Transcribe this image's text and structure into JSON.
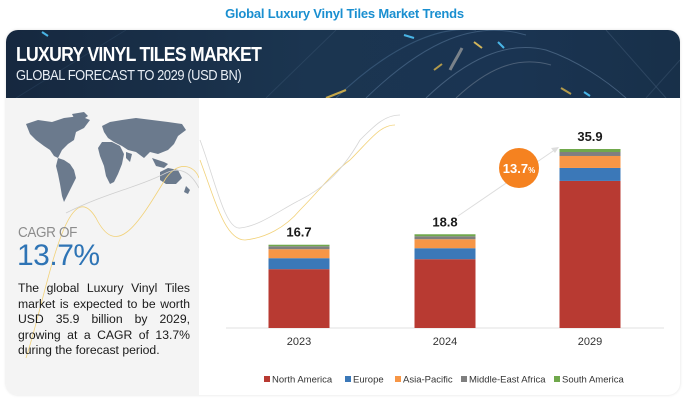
{
  "page_title": "Global Luxury Vinyl Tiles Market Trends",
  "banner": {
    "title": "LUXURY VINYL TILES MARKET",
    "subtitle": "GLOBAL FORECAST TO 2029 (USD BN)"
  },
  "left_panel": {
    "cagr_label": "CAGR OF",
    "cagr_value": "13.7%",
    "description": "The global Luxury Vinyl Tiles market is expected to be worth USD 35.9 billion by 2029, growing at a CAGR of 13.7% during the forecast period."
  },
  "chart_data": {
    "type": "bar",
    "stacked": true,
    "title": "LUXURY VINYL TILES MARKET",
    "subtitle": "GLOBAL FORECAST TO 2029 (USD BN)",
    "xlabel": "",
    "ylabel": "",
    "ylim": [
      0,
      35.9
    ],
    "grid": false,
    "legend_position": "bottom",
    "categories": [
      "2023",
      "2024",
      "2029"
    ],
    "totals": [
      16.7,
      18.8,
      35.9
    ],
    "total_labels": [
      "16.7",
      "18.8",
      "35.9"
    ],
    "series": [
      {
        "name": "North America",
        "color": "#b83a32",
        "values": [
          11.8,
          13.8,
          29.5
        ]
      },
      {
        "name": "Europe",
        "color": "#3b78b8",
        "values": [
          2.2,
          2.2,
          2.6
        ]
      },
      {
        "name": "Asia-Pacific",
        "color": "#f79646",
        "values": [
          1.8,
          1.8,
          2.4
        ]
      },
      {
        "name": "Middle-East Africa",
        "color": "#7f7f7f",
        "values": [
          0.6,
          0.6,
          0.8
        ]
      },
      {
        "name": "South America",
        "color": "#70a84c",
        "values": [
          0.3,
          0.4,
          0.6
        ]
      }
    ],
    "annotation": {
      "value": "13.7",
      "suffix": "%",
      "color": "#f58220",
      "text_color": "#ffffff"
    }
  }
}
